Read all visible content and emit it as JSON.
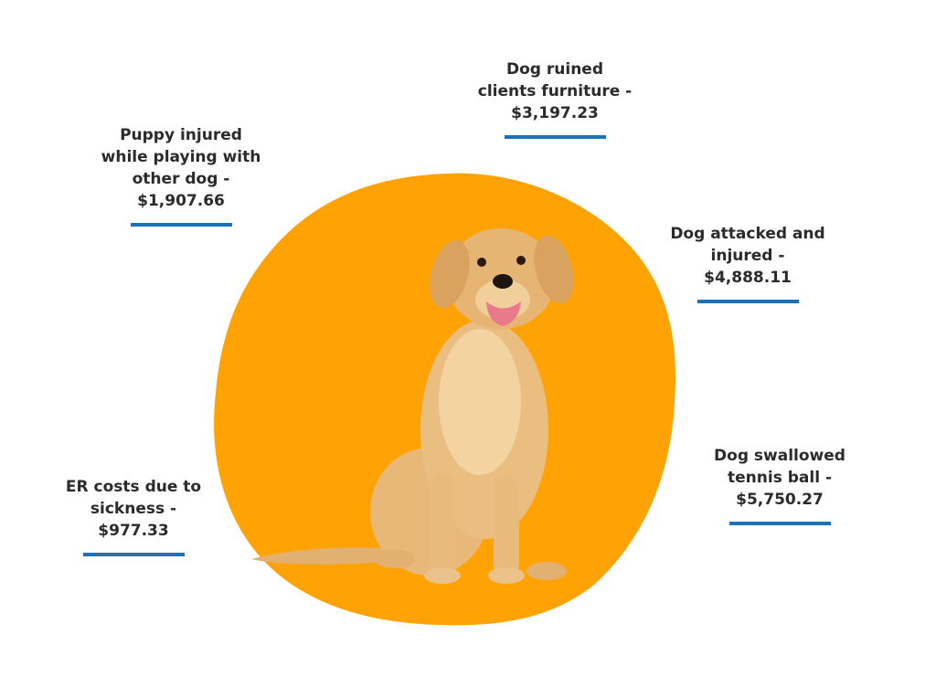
{
  "labels": [
    {
      "lines": [
        "Dog ruined",
        "clients furniture -"
      ],
      "amount": "$3,197.23"
    },
    {
      "lines": [
        "Puppy injured",
        "while playing with",
        "other dog -"
      ],
      "amount": "$1,907.66"
    },
    {
      "lines": [
        "Dog attacked and",
        "injured -"
      ],
      "amount": "$4,888.11"
    },
    {
      "lines": [
        "Dog swallowed",
        "tennis ball -"
      ],
      "amount": "$5,750.27"
    },
    {
      "lines": [
        "ER costs due to",
        "sickness -"
      ],
      "amount": "$977.33"
    }
  ]
}
